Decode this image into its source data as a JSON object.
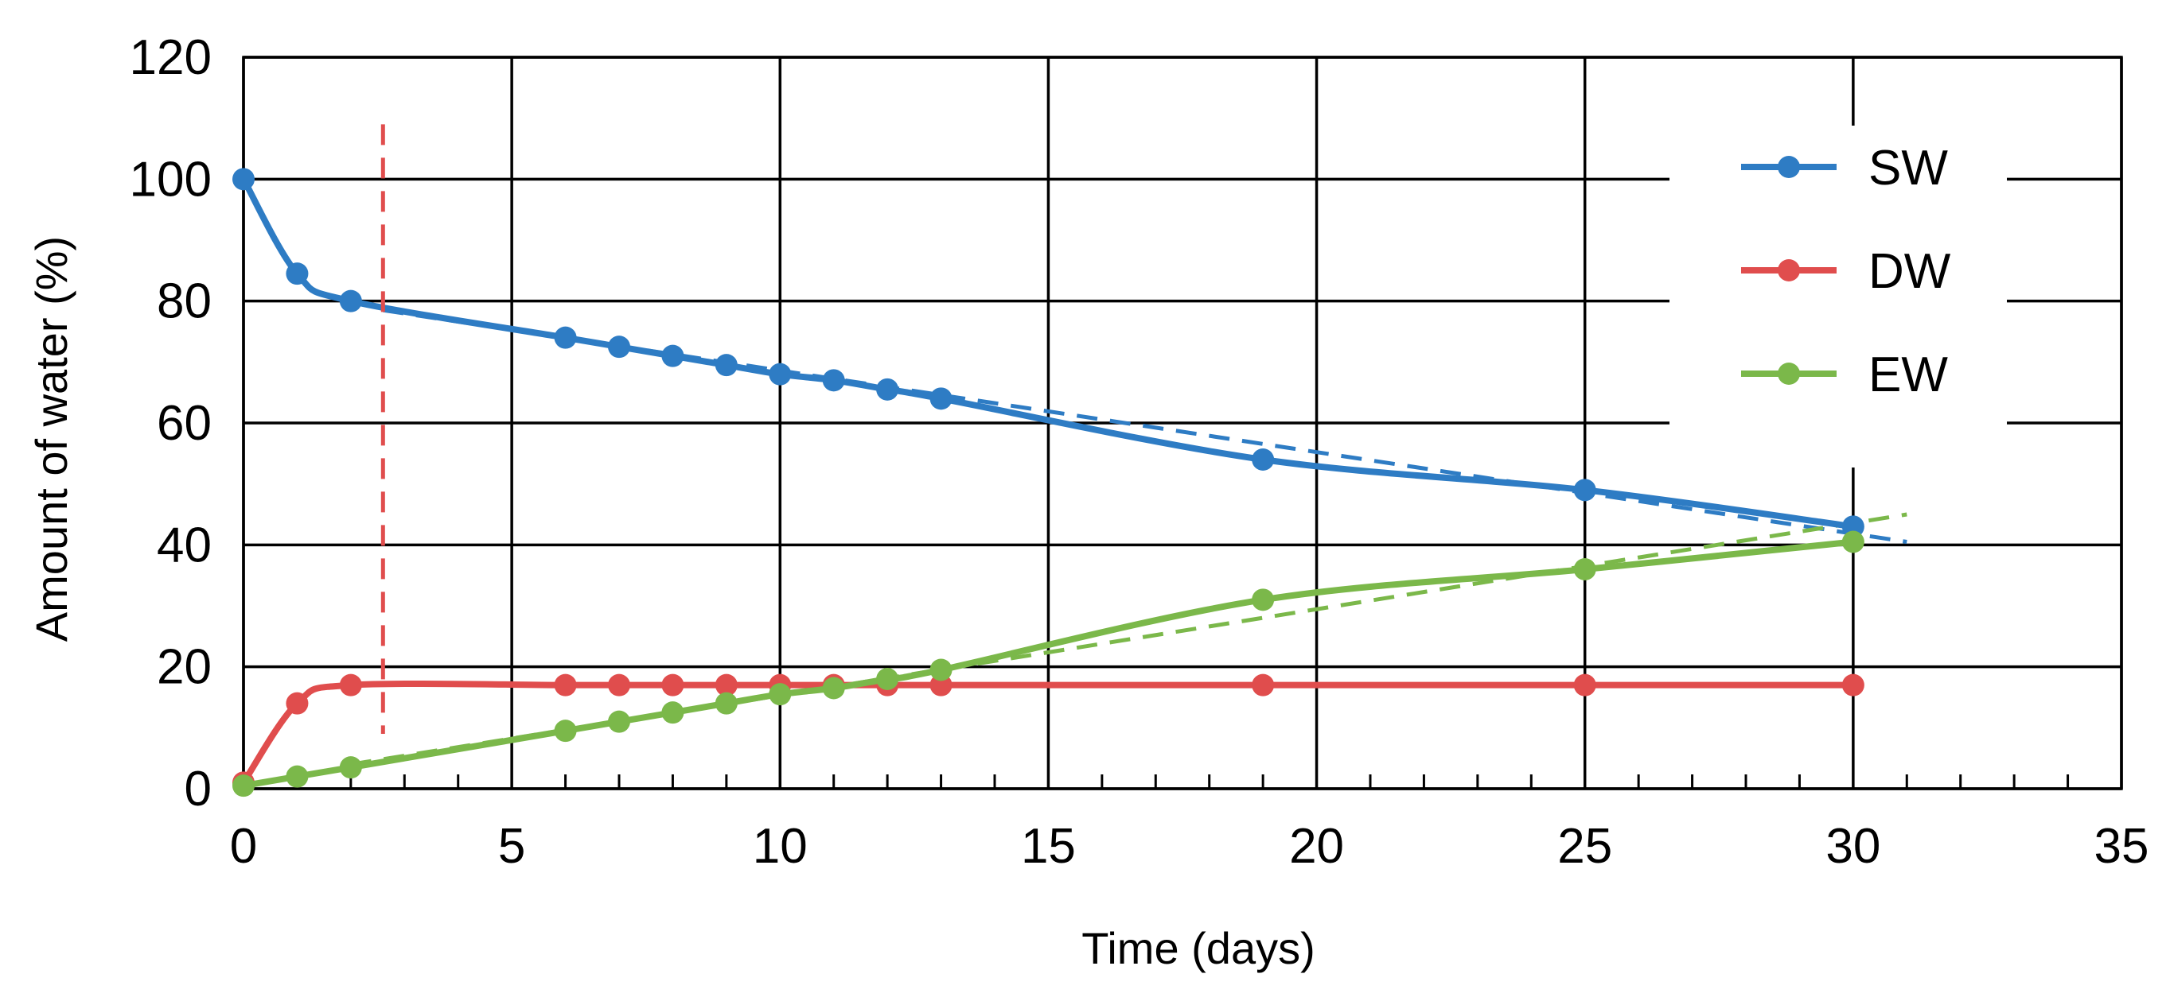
{
  "chart_data": {
    "type": "line",
    "title": "",
    "xlabel": "Time (days)",
    "ylabel": "Amount of water (%)",
    "xlim": [
      0,
      35
    ],
    "ylim": [
      0,
      120
    ],
    "xticks": [
      0,
      5,
      10,
      15,
      20,
      25,
      30,
      35
    ],
    "yticks": [
      0,
      20,
      40,
      60,
      80,
      100,
      120
    ],
    "xminor_step": 1,
    "grid": true,
    "legend_position": "top-right",
    "colors": {
      "SW": "#2e7cc4",
      "DW": "#e04d4d",
      "EW": "#7bb84a"
    },
    "series": [
      {
        "name": "SW",
        "color": "#2e7cc4",
        "x": [
          0,
          1,
          2,
          6,
          7,
          8,
          9,
          10,
          11,
          12,
          13,
          19,
          25,
          30
        ],
        "y": [
          100,
          84.5,
          80,
          74,
          72.5,
          71,
          69.5,
          68,
          67,
          65.5,
          64,
          54,
          49,
          43
        ]
      },
      {
        "name": "DW",
        "color": "#e04d4d",
        "x": [
          0,
          1,
          2,
          6,
          7,
          8,
          9,
          10,
          11,
          12,
          13,
          19,
          25,
          30
        ],
        "y": [
          1,
          14,
          17,
          17,
          17,
          17,
          17,
          17,
          17,
          17,
          17,
          17,
          17,
          17
        ]
      },
      {
        "name": "EW",
        "color": "#7bb84a",
        "x": [
          0,
          1,
          2,
          6,
          7,
          8,
          9,
          10,
          11,
          12,
          13,
          19,
          25,
          30
        ],
        "y": [
          0.5,
          2,
          3.5,
          9.5,
          11,
          12.5,
          14,
          15.5,
          16.5,
          18,
          19.5,
          31,
          36,
          40.5
        ]
      }
    ],
    "trend_lines": [
      {
        "series": "SW",
        "style": "dashed",
        "x": [
          2.6,
          31
        ],
        "y": [
          78.5,
          40.5
        ]
      },
      {
        "series": "EW",
        "style": "dashed",
        "x": [
          2,
          31
        ],
        "y": [
          4,
          45
        ]
      }
    ],
    "annotations": [
      {
        "type": "vertical-dashed-line",
        "color": "#e04d4d",
        "x": 2.6,
        "y_range": [
          9,
          109
        ]
      }
    ]
  }
}
